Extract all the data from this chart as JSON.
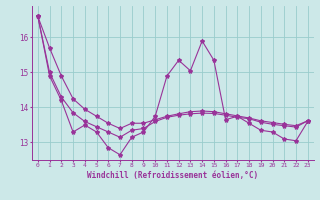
{
  "xlabel": "Windchill (Refroidissement éolien,°C)",
  "x_values": [
    0,
    1,
    2,
    3,
    4,
    5,
    6,
    7,
    8,
    9,
    10,
    11,
    12,
    13,
    14,
    15,
    16,
    17,
    18,
    19,
    20,
    21,
    22,
    23
  ],
  "line1_y": [
    16.6,
    14.9,
    14.2,
    13.3,
    13.5,
    13.3,
    12.85,
    12.65,
    13.15,
    13.3,
    13.75,
    14.9,
    15.35,
    15.05,
    15.9,
    15.35,
    13.65,
    13.75,
    13.55,
    13.35,
    13.3,
    13.1,
    13.05,
    13.6
  ],
  "line2_y": [
    16.6,
    15.7,
    14.9,
    14.25,
    13.95,
    13.75,
    13.55,
    13.4,
    13.55,
    13.55,
    13.65,
    13.75,
    13.82,
    13.88,
    13.9,
    13.88,
    13.82,
    13.76,
    13.7,
    13.62,
    13.57,
    13.52,
    13.48,
    13.62
  ],
  "line3_y": [
    16.6,
    15.0,
    14.3,
    13.85,
    13.6,
    13.45,
    13.3,
    13.15,
    13.35,
    13.4,
    13.6,
    13.72,
    13.78,
    13.82,
    13.84,
    13.83,
    13.78,
    13.72,
    13.68,
    13.58,
    13.52,
    13.48,
    13.44,
    13.62
  ],
  "ylim": [
    12.5,
    16.9
  ],
  "yticks": [
    13,
    14,
    15,
    16
  ],
  "bg_color": "#cce8e8",
  "line_color": "#993399",
  "grid_color": "#99cccc",
  "marker": "*",
  "markersize": 3,
  "linewidth": 0.8
}
